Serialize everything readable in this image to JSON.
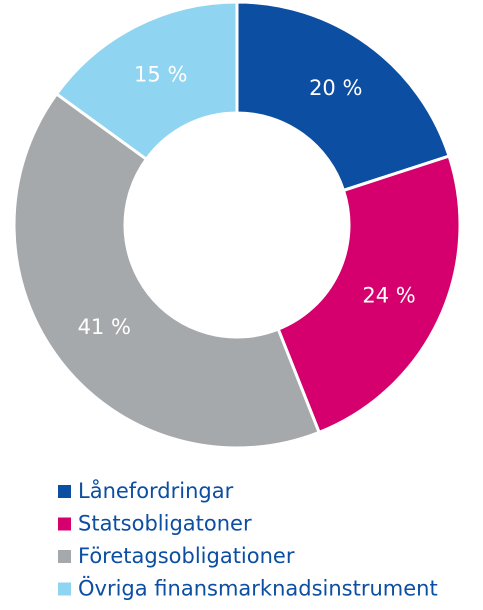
{
  "chart_data": {
    "type": "donut",
    "categories": [
      "Lånefordringar",
      "Statsobligatoner",
      "Företagsobligationer",
      "Övriga finansmarknadsinstrument"
    ],
    "values": [
      20,
      24,
      41,
      15
    ],
    "value_labels": [
      "20 %",
      "24 %",
      "41 %",
      "15 %"
    ],
    "colors": [
      "#0b4ea2",
      "#d5006d",
      "#a6a9ac",
      "#8fd4f0"
    ],
    "legend": "bottom"
  }
}
